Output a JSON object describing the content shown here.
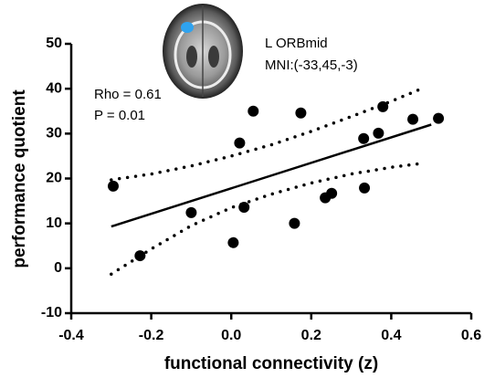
{
  "chart_data": {
    "type": "scatter",
    "x_label": "functional connectivity (z)",
    "y_label": "performance quotient",
    "annotations": [
      "Rho = 0.61",
      "P = 0.01",
      "L ORBmid",
      "MNI:(-33,45,-3)"
    ],
    "x": [
      -0.295,
      -0.228,
      -0.1,
      0.005,
      0.021,
      0.032,
      0.055,
      0.158,
      0.174,
      0.235,
      0.251,
      0.331,
      0.333,
      0.368,
      0.379,
      0.454,
      0.518
    ],
    "values": [
      18.3,
      2.8,
      12.4,
      5.7,
      27.9,
      13.6,
      35.0,
      10.0,
      34.6,
      15.7,
      16.7,
      28.9,
      17.9,
      30.1,
      36.0,
      33.2,
      33.4
    ],
    "color": "#000000",
    "lines": [
      {
        "x": [
          -0.3,
          0.5
        ],
        "values": [
          9.3,
          32.0
        ],
        "dash": "solid"
      },
      {
        "x": [
          -0.3,
          -0.2,
          -0.1,
          0,
          0.1,
          0.2,
          0.3,
          0.4,
          0.47
        ],
        "values": [
          19.7,
          21,
          22.8,
          25,
          27.5,
          30.5,
          33.8,
          37.2,
          39.8
        ],
        "dash": "dotted"
      },
      {
        "x": [
          -0.3,
          -0.2,
          -0.1,
          0,
          0.1,
          0.2,
          0.3,
          0.4,
          0.47
        ],
        "values": [
          -1.3,
          4.3,
          9.5,
          13.5,
          16.5,
          19,
          21,
          22.5,
          23.3
        ],
        "dash": "dotted"
      }
    ],
    "xlim": [
      -0.4,
      0.6
    ],
    "xticks": [
      -0.4,
      -0.2,
      {
        "value": 0,
        "label": "0.0"
      },
      0.2,
      0.4,
      0.6
    ],
    "ylim": [
      -10,
      50
    ],
    "yticks": [
      -10,
      0,
      10,
      20,
      30,
      40,
      50
    ]
  }
}
